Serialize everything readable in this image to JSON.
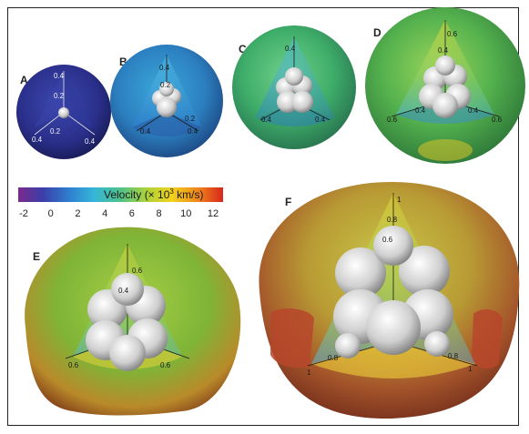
{
  "panels": [
    {
      "id": "A",
      "axis_labels": [
        "0.4",
        "0.2",
        "0.2",
        "0.4",
        "0.4"
      ]
    },
    {
      "id": "B",
      "axis_labels": [
        "0.4",
        "0.2",
        "0.4",
        "0.2",
        "0.4"
      ]
    },
    {
      "id": "C",
      "axis_labels": [
        "0.4",
        "0.4",
        "0.4"
      ]
    },
    {
      "id": "D",
      "axis_labels": [
        "0.6",
        "0.4",
        "0.6",
        "0.4",
        "0.4",
        "0.6"
      ]
    },
    {
      "id": "E",
      "axis_labels": [
        "0.6",
        "0.4",
        "0.6",
        "0.6"
      ]
    },
    {
      "id": "F",
      "axis_labels": [
        "1",
        "0.8",
        "0.6",
        "1",
        "0.8",
        "0.8",
        "1"
      ]
    }
  ],
  "colorbar": {
    "title_prefix": "Velocity (× 10",
    "title_exp": "3",
    "title_suffix": " km/s)",
    "ticks": [
      "-2",
      "0",
      "2",
      "4",
      "6",
      "8",
      "10",
      "12"
    ],
    "colors": [
      "#7b2a8c",
      "#3b3ea8",
      "#2f7fd0",
      "#35b6d8",
      "#4fc28a",
      "#a9d23c",
      "#f2d21d",
      "#f08a1c",
      "#d8261c"
    ]
  }
}
